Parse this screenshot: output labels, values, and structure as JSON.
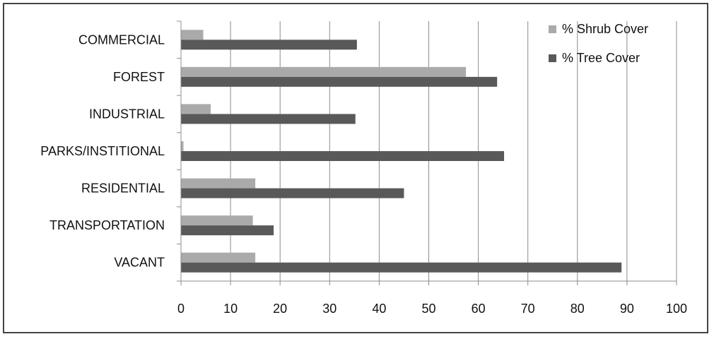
{
  "chart_data": {
    "type": "bar",
    "orientation": "horizontal",
    "categories": [
      "COMMERCIAL",
      "FOREST",
      "INDUSTRIAL",
      "PARKS/INSTITIONAL",
      "RESIDENTIAL",
      "TRANSPORTATION",
      "VACANT"
    ],
    "series": [
      {
        "name": "% Shrub Cover",
        "values": [
          4.5,
          57.5,
          6,
          0.5,
          15,
          14.5,
          15
        ],
        "color": "#aaaaaa"
      },
      {
        "name": "% Tree Cover",
        "values": [
          35.5,
          63.8,
          35.2,
          65.2,
          45,
          18.7,
          88.9
        ],
        "color": "#595959"
      }
    ],
    "xlim": [
      0,
      100
    ],
    "xticks": [
      0,
      10,
      20,
      30,
      40,
      50,
      60,
      70,
      80,
      90,
      100
    ],
    "grid": "vertical",
    "legend_position": "top-right",
    "title": "",
    "xlabel": "",
    "ylabel": ""
  }
}
